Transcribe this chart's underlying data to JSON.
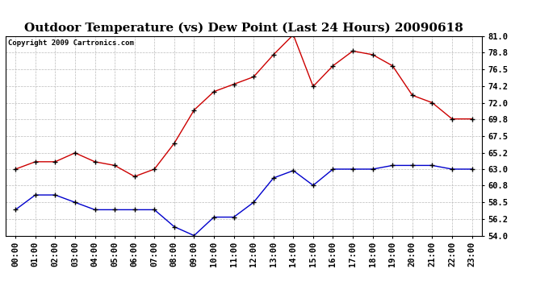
{
  "title": "Outdoor Temperature (vs) Dew Point (Last 24 Hours) 20090618",
  "copyright": "Copyright 2009 Cartronics.com",
  "x_labels": [
    "00:00",
    "01:00",
    "02:00",
    "03:00",
    "04:00",
    "05:00",
    "06:00",
    "07:00",
    "08:00",
    "09:00",
    "10:00",
    "11:00",
    "12:00",
    "13:00",
    "14:00",
    "15:00",
    "16:00",
    "17:00",
    "18:00",
    "19:00",
    "20:00",
    "21:00",
    "22:00",
    "23:00"
  ],
  "temp_red": [
    63.0,
    64.0,
    64.0,
    65.2,
    64.0,
    63.5,
    62.0,
    63.0,
    66.5,
    71.0,
    73.5,
    74.5,
    75.5,
    78.5,
    81.2,
    74.2,
    77.0,
    79.0,
    78.5,
    77.0,
    73.0,
    72.0,
    69.8,
    69.8
  ],
  "dew_blue": [
    57.5,
    59.5,
    59.5,
    58.5,
    57.5,
    57.5,
    57.5,
    57.5,
    55.2,
    54.0,
    56.5,
    56.5,
    58.5,
    61.8,
    62.8,
    60.8,
    63.0,
    63.0,
    63.0,
    63.5,
    63.5,
    63.5,
    63.0,
    63.0
  ],
  "ylim": [
    54.0,
    81.0
  ],
  "yticks": [
    54.0,
    56.2,
    58.5,
    60.8,
    63.0,
    65.2,
    67.5,
    69.8,
    72.0,
    74.2,
    76.5,
    78.8,
    81.0
  ],
  "red_color": "#cc0000",
  "blue_color": "#0000cc",
  "grid_color": "#bbbbbb",
  "bg_color": "#ffffff",
  "title_fontsize": 11,
  "copyright_fontsize": 6.5,
  "tick_fontsize": 7.5
}
